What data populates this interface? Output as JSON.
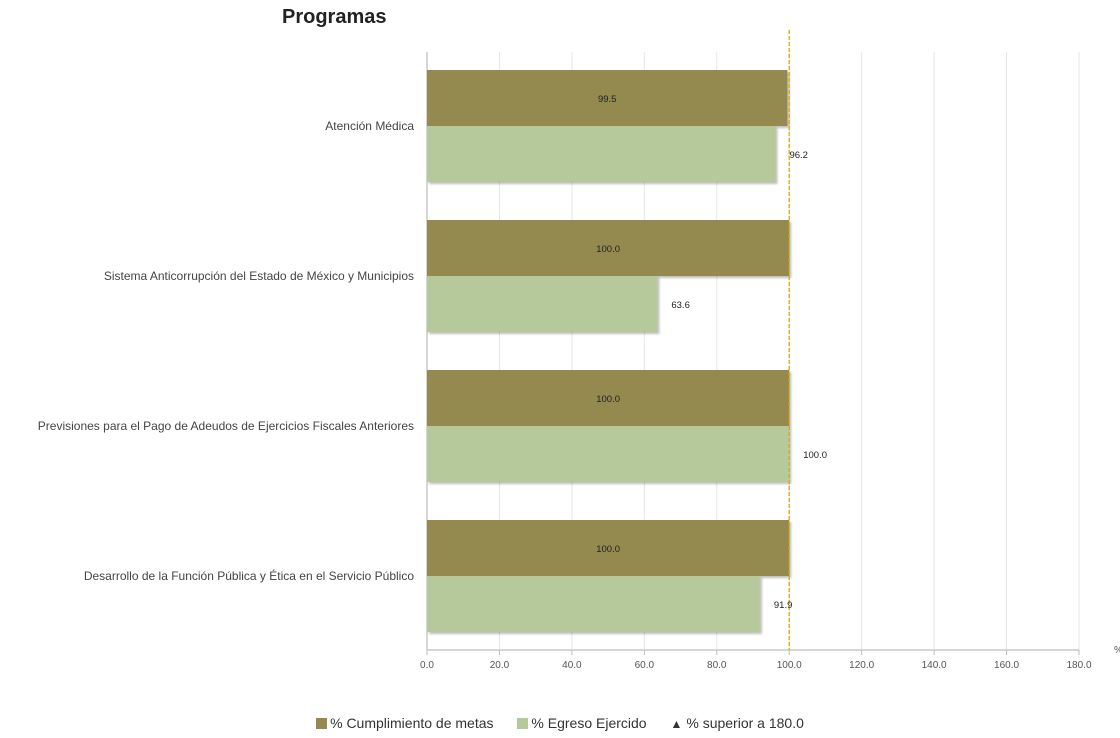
{
  "chart_data": {
    "type": "bar",
    "orientation": "horizontal",
    "title": "Programas",
    "unit": "%",
    "categories": [
      "Atención Médica",
      "Sistema Anticorrupción del Estado de México y Municipios",
      "Previsiones para el Pago de Adeudos de Ejercicios Fiscales Anteriores",
      "Desarrollo de la Función Pública y Ética en el Servicio Público"
    ],
    "series": [
      {
        "name": "% Cumplimiento de metas",
        "color": "#948950",
        "values": [
          99.5,
          100.0,
          100.0,
          100.0
        ]
      },
      {
        "name": "% Egreso Ejercido",
        "color": "#b5c99a",
        "values": [
          96.2,
          63.6,
          100.0,
          91.9
        ]
      }
    ],
    "xlim": [
      0,
      180
    ],
    "xticks": [
      "0.0",
      "20.0",
      "40.0",
      "60.0",
      "80.0",
      "100.0",
      "120.0",
      "140.0",
      "160.0",
      "180.0"
    ],
    "reference_line": {
      "value": 100,
      "color": "#e0a800"
    },
    "grid": true,
    "legend_position": "bottom",
    "legend_marker_label": "% superior a 180.0"
  }
}
